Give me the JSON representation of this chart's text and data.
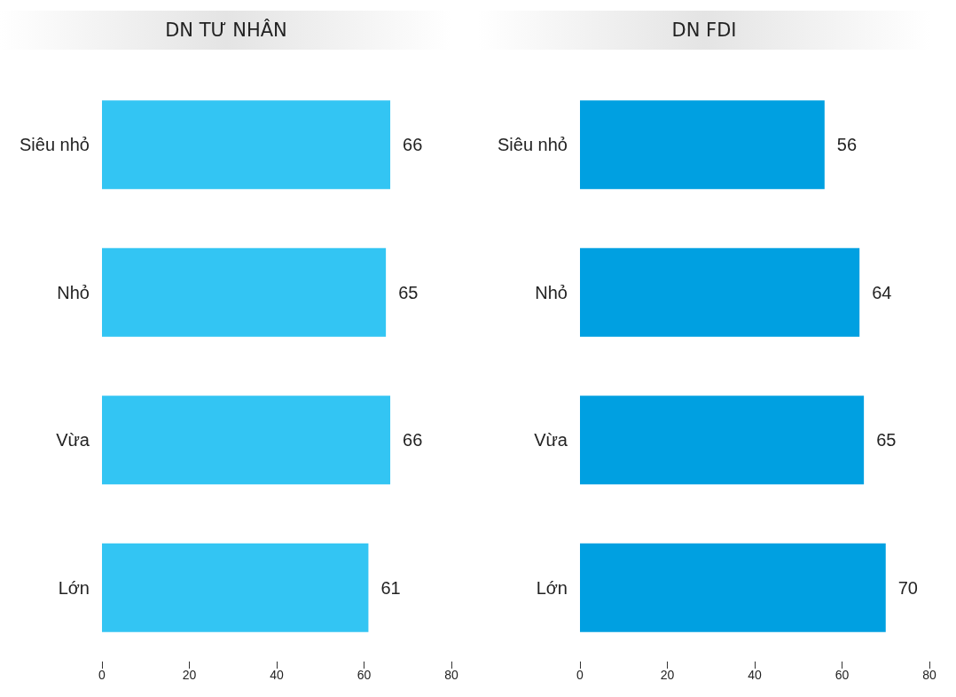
{
  "chart_data": [
    {
      "type": "bar",
      "orientation": "horizontal",
      "title": "DN TƯ NHÂN",
      "categories": [
        "Siêu nhỏ",
        "Nhỏ",
        "Vừa",
        "Lớn"
      ],
      "values": [
        66,
        65,
        66,
        61
      ],
      "color": "#33c5f3",
      "xlim": [
        0,
        80
      ],
      "xticks": [
        0,
        20,
        40,
        60,
        80
      ],
      "data_labels": true,
      "grid": false
    },
    {
      "type": "bar",
      "orientation": "horizontal",
      "title": "DN FDI",
      "categories": [
        "Siêu nhỏ",
        "Nhỏ",
        "Vừa",
        "Lớn"
      ],
      "values": [
        56,
        64,
        65,
        70
      ],
      "color": "#00a0e1",
      "xlim": [
        0,
        80
      ],
      "xticks": [
        0,
        20,
        40,
        60,
        80
      ],
      "data_labels": true,
      "grid": false
    }
  ]
}
